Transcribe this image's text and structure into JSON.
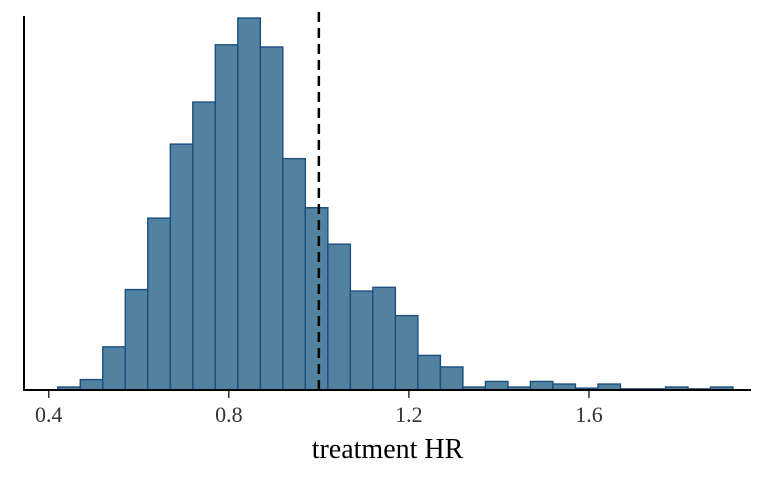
{
  "chart_data": {
    "type": "histogram",
    "xlabel": "treatment HR",
    "ylabel": "",
    "xlim": [
      0.345,
      1.96
    ],
    "ylim": [
      0,
      100
    ],
    "x_ticks": [
      0.4,
      0.8,
      1.2,
      1.6
    ],
    "x_tick_labels": [
      "0.4",
      "0.8",
      "1.2",
      "1.6"
    ],
    "show_y_axis_ticks": false,
    "grid": false,
    "bin_width": 0.05,
    "bins": [
      {
        "x0": 0.42,
        "x1": 0.47,
        "count": 0.8
      },
      {
        "x0": 0.47,
        "x1": 0.52,
        "count": 2.8
      },
      {
        "x0": 0.52,
        "x1": 0.57,
        "count": 11.6
      },
      {
        "x0": 0.57,
        "x1": 0.62,
        "count": 27.0
      },
      {
        "x0": 0.62,
        "x1": 0.67,
        "count": 46.2
      },
      {
        "x0": 0.67,
        "x1": 0.72,
        "count": 66.1
      },
      {
        "x0": 0.72,
        "x1": 0.77,
        "count": 77.4
      },
      {
        "x0": 0.77,
        "x1": 0.82,
        "count": 92.8
      },
      {
        "x0": 0.82,
        "x1": 0.87,
        "count": 100.0
      },
      {
        "x0": 0.87,
        "x1": 0.92,
        "count": 92.2
      },
      {
        "x0": 0.92,
        "x1": 0.97,
        "count": 62.2
      },
      {
        "x0": 0.97,
        "x1": 1.02,
        "count": 49.0
      },
      {
        "x0": 1.02,
        "x1": 1.07,
        "count": 39.2
      },
      {
        "x0": 1.07,
        "x1": 1.12,
        "count": 26.6
      },
      {
        "x0": 1.12,
        "x1": 1.17,
        "count": 27.6
      },
      {
        "x0": 1.17,
        "x1": 1.22,
        "count": 20.0
      },
      {
        "x0": 1.22,
        "x1": 1.27,
        "count": 9.3
      },
      {
        "x0": 1.27,
        "x1": 1.32,
        "count": 6.2
      },
      {
        "x0": 1.32,
        "x1": 1.37,
        "count": 0.8
      },
      {
        "x0": 1.37,
        "x1": 1.42,
        "count": 2.3
      },
      {
        "x0": 1.42,
        "x1": 1.47,
        "count": 0.8
      },
      {
        "x0": 1.47,
        "x1": 1.52,
        "count": 2.3
      },
      {
        "x0": 1.52,
        "x1": 1.57,
        "count": 1.6
      },
      {
        "x0": 1.57,
        "x1": 1.62,
        "count": 0.5
      },
      {
        "x0": 1.62,
        "x1": 1.67,
        "count": 1.6
      },
      {
        "x0": 1.67,
        "x1": 1.72,
        "count": 0.3
      },
      {
        "x0": 1.72,
        "x1": 1.77,
        "count": 0.3
      },
      {
        "x0": 1.77,
        "x1": 1.82,
        "count": 0.8
      },
      {
        "x0": 1.82,
        "x1": 1.87,
        "count": 0.3
      },
      {
        "x0": 1.87,
        "x1": 1.92,
        "count": 0.8
      }
    ],
    "reference_line": {
      "x": 1.0,
      "style": "dashed",
      "color": "#000000"
    },
    "colors": {
      "bar_fill": "#52829f",
      "bar_stroke": "#1a4f80"
    }
  }
}
